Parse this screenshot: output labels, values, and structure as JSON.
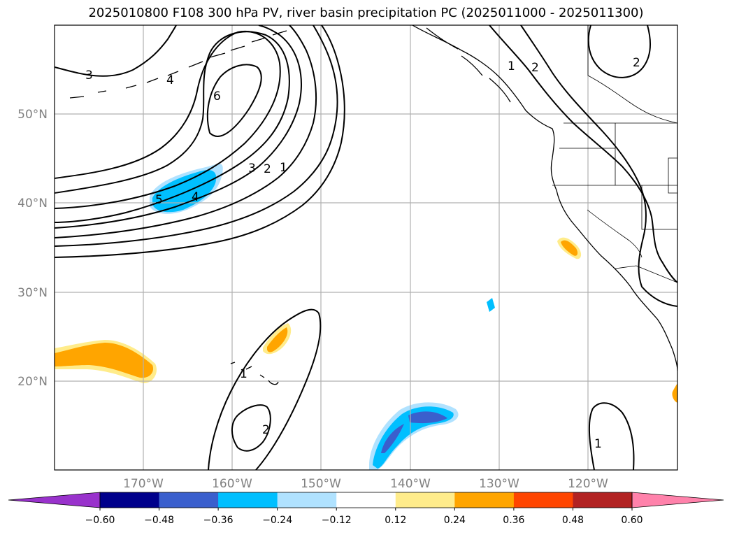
{
  "title": "2025010800 F108 300 hPa PV, river basin precipitation PC (2025011000 - 2025011300)",
  "lat_ticks": [
    "50°N",
    "40°N",
    "30°N",
    "20°N"
  ],
  "lon_ticks": [
    "170°W",
    "160°W",
    "150°W",
    "140°W",
    "130°W",
    "120°W"
  ],
  "pv_contour_labels": [
    "3",
    "4",
    "6",
    "5",
    "4",
    "3",
    "2",
    "1",
    "1",
    "2",
    "2",
    "1",
    "2",
    "1"
  ],
  "colorbar": {
    "colors": [
      "#9932cc",
      "#00008b",
      "#3a5fcd",
      "#00bfff",
      "#b0e2ff",
      "#ffffff",
      "#ffec8b",
      "#ffa500",
      "#ff4500",
      "#b22222",
      "#ff82ab"
    ],
    "tick_labels": [
      "−0.60",
      "−0.48",
      "−0.36",
      "−0.24",
      "−0.12",
      "0.12",
      "0.24",
      "0.36",
      "0.48",
      "0.60"
    ]
  }
}
